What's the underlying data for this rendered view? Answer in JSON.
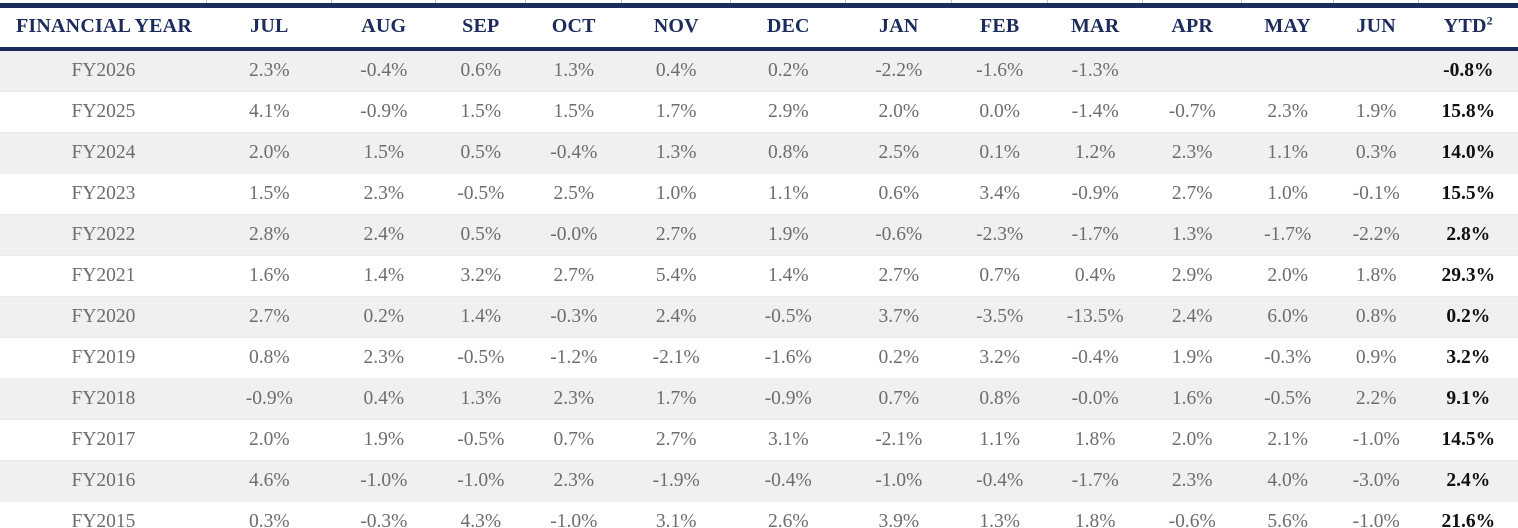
{
  "table": {
    "columns": [
      "FINANCIAL YEAR",
      "JUL",
      "AUG",
      "SEP",
      "OCT",
      "NOV",
      "DEC",
      "JAN",
      "FEB",
      "MAR",
      "APR",
      "MAY",
      "JUN"
    ],
    "ytd": {
      "label": "YTD",
      "superscript": "2"
    },
    "rows": [
      {
        "year": "FY2026",
        "values": [
          "2.3%",
          "-0.4%",
          "0.6%",
          "1.3%",
          "0.4%",
          "0.2%",
          "-2.2%",
          "-1.6%",
          "-1.3%",
          "",
          "",
          ""
        ],
        "ytd": "-0.8%"
      },
      {
        "year": "FY2025",
        "values": [
          "4.1%",
          "-0.9%",
          "1.5%",
          "1.5%",
          "1.7%",
          "2.9%",
          "2.0%",
          "0.0%",
          "-1.4%",
          "-0.7%",
          "2.3%",
          "1.9%"
        ],
        "ytd": "15.8%"
      },
      {
        "year": "FY2024",
        "values": [
          "2.0%",
          "1.5%",
          "0.5%",
          "-0.4%",
          "1.3%",
          "0.8%",
          "2.5%",
          "0.1%",
          "1.2%",
          "2.3%",
          "1.1%",
          "0.3%"
        ],
        "ytd": "14.0%"
      },
      {
        "year": "FY2023",
        "values": [
          "1.5%",
          "2.3%",
          "-0.5%",
          "2.5%",
          "1.0%",
          "1.1%",
          "0.6%",
          "3.4%",
          "-0.9%",
          "2.7%",
          "1.0%",
          "-0.1%"
        ],
        "ytd": "15.5%"
      },
      {
        "year": "FY2022",
        "values": [
          "2.8%",
          "2.4%",
          "0.5%",
          "-0.0%",
          "2.7%",
          "1.9%",
          "-0.6%",
          "-2.3%",
          "-1.7%",
          "1.3%",
          "-1.7%",
          "-2.2%"
        ],
        "ytd": "2.8%"
      },
      {
        "year": "FY2021",
        "values": [
          "1.6%",
          "1.4%",
          "3.2%",
          "2.7%",
          "5.4%",
          "1.4%",
          "2.7%",
          "0.7%",
          "0.4%",
          "2.9%",
          "2.0%",
          "1.8%"
        ],
        "ytd": "29.3%"
      },
      {
        "year": "FY2020",
        "values": [
          "2.7%",
          "0.2%",
          "1.4%",
          "-0.3%",
          "2.4%",
          "-0.5%",
          "3.7%",
          "-3.5%",
          "-13.5%",
          "2.4%",
          "6.0%",
          "0.8%"
        ],
        "ytd": "0.2%"
      },
      {
        "year": "FY2019",
        "values": [
          "0.8%",
          "2.3%",
          "-0.5%",
          "-1.2%",
          "-2.1%",
          "-1.6%",
          "0.2%",
          "3.2%",
          "-0.4%",
          "1.9%",
          "-0.3%",
          "0.9%"
        ],
        "ytd": "3.2%"
      },
      {
        "year": "FY2018",
        "values": [
          "-0.9%",
          "0.4%",
          "1.3%",
          "2.3%",
          "1.7%",
          "-0.9%",
          "0.7%",
          "0.8%",
          "-0.0%",
          "1.6%",
          "-0.5%",
          "2.2%"
        ],
        "ytd": "9.1%"
      },
      {
        "year": "FY2017",
        "values": [
          "2.0%",
          "1.9%",
          "-0.5%",
          "0.7%",
          "2.7%",
          "3.1%",
          "-2.1%",
          "1.1%",
          "1.8%",
          "2.0%",
          "2.1%",
          "-1.0%"
        ],
        "ytd": "14.5%"
      },
      {
        "year": "FY2016",
        "values": [
          "4.6%",
          "-1.0%",
          "-1.0%",
          "2.3%",
          "-1.9%",
          "-0.4%",
          "-1.0%",
          "-0.4%",
          "-1.7%",
          "2.3%",
          "4.0%",
          "-3.0%"
        ],
        "ytd": "2.4%"
      },
      {
        "year": "FY2015",
        "values": [
          "0.3%",
          "-0.3%",
          "4.3%",
          "-1.0%",
          "3.1%",
          "2.6%",
          "3.9%",
          "1.3%",
          "1.8%",
          "-0.6%",
          "5.6%",
          "-1.0%"
        ],
        "ytd": "21.6%"
      }
    ]
  },
  "colors": {
    "navy": "#1b2b5c",
    "body_text": "#6d6d6d",
    "stripe": "#f0f0f0",
    "row_divider": "#eaeaea",
    "gridline_tick": "#c4c4c4",
    "bottom_border": "#141414",
    "ytd_text": "#101010",
    "background": "#ffffff"
  },
  "chart_data": {
    "type": "table",
    "title": "Monthly returns by financial year",
    "columns": [
      "FINANCIAL YEAR",
      "JUL",
      "AUG",
      "SEP",
      "OCT",
      "NOV",
      "DEC",
      "JAN",
      "FEB",
      "MAR",
      "APR",
      "MAY",
      "JUN",
      "YTD"
    ],
    "rows": [
      [
        "FY2026",
        2.3,
        -0.4,
        0.6,
        1.3,
        0.4,
        0.2,
        -2.2,
        -1.6,
        -1.3,
        null,
        null,
        null,
        -0.8
      ],
      [
        "FY2025",
        4.1,
        -0.9,
        1.5,
        1.5,
        1.7,
        2.9,
        2.0,
        0.0,
        -1.4,
        -0.7,
        2.3,
        1.9,
        15.8
      ],
      [
        "FY2024",
        2.0,
        1.5,
        0.5,
        -0.4,
        1.3,
        0.8,
        2.5,
        0.1,
        1.2,
        2.3,
        1.1,
        0.3,
        14.0
      ],
      [
        "FY2023",
        1.5,
        2.3,
        -0.5,
        2.5,
        1.0,
        1.1,
        0.6,
        3.4,
        -0.9,
        2.7,
        1.0,
        -0.1,
        15.5
      ],
      [
        "FY2022",
        2.8,
        2.4,
        0.5,
        -0.0,
        2.7,
        1.9,
        -0.6,
        -2.3,
        -1.7,
        1.3,
        -1.7,
        -2.2,
        2.8
      ],
      [
        "FY2021",
        1.6,
        1.4,
        3.2,
        2.7,
        5.4,
        1.4,
        2.7,
        0.7,
        0.4,
        2.9,
        2.0,
        1.8,
        29.3
      ],
      [
        "FY2020",
        2.7,
        0.2,
        1.4,
        -0.3,
        2.4,
        -0.5,
        3.7,
        -3.5,
        -13.5,
        2.4,
        6.0,
        0.8,
        0.2
      ],
      [
        "FY2019",
        0.8,
        2.3,
        -0.5,
        -1.2,
        -2.1,
        -1.6,
        0.2,
        3.2,
        -0.4,
        1.9,
        -0.3,
        0.9,
        3.2
      ],
      [
        "FY2018",
        -0.9,
        0.4,
        1.3,
        2.3,
        1.7,
        -0.9,
        0.7,
        0.8,
        -0.0,
        1.6,
        -0.5,
        2.2,
        9.1
      ],
      [
        "FY2017",
        2.0,
        1.9,
        -0.5,
        0.7,
        2.7,
        3.1,
        -2.1,
        1.1,
        1.8,
        2.0,
        2.1,
        -1.0,
        14.5
      ],
      [
        "FY2016",
        4.6,
        -1.0,
        -1.0,
        2.3,
        -1.9,
        -0.4,
        -1.0,
        -0.4,
        -1.7,
        2.3,
        4.0,
        -3.0,
        2.4
      ],
      [
        "FY2015",
        0.3,
        -0.3,
        4.3,
        -1.0,
        3.1,
        2.6,
        3.9,
        1.3,
        1.8,
        -0.6,
        5.6,
        -1.0,
        21.6
      ]
    ],
    "units": "percent"
  }
}
